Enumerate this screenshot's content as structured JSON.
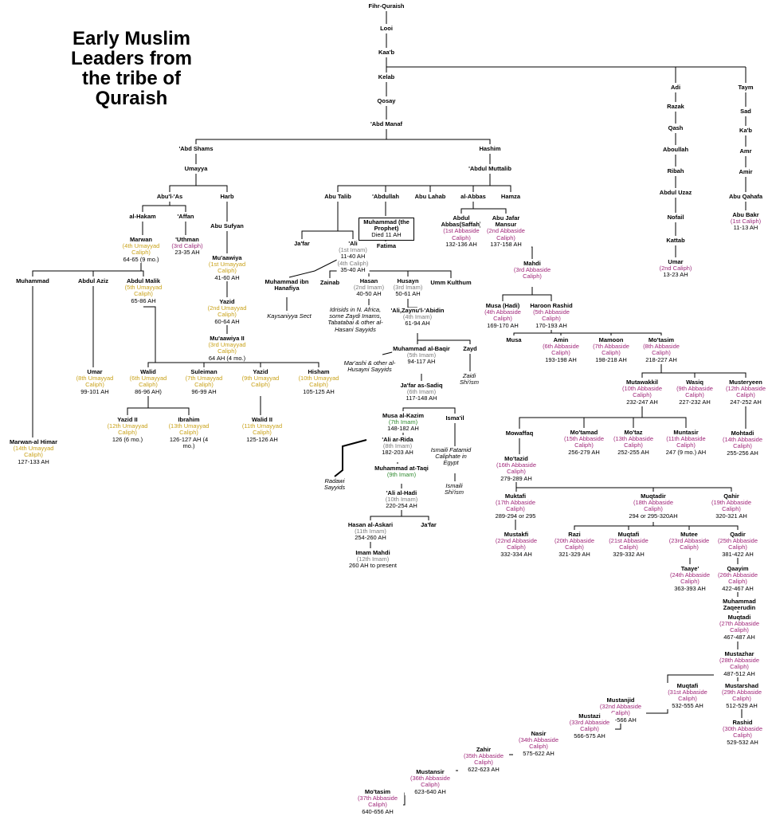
{
  "title": "Early Muslim Leaders from the tribe of Quraish",
  "role_colors": {
    "umayyad": "#c9a21a",
    "abbasid": "#a0287a",
    "imam": "#7a7a7a",
    "imam_green": "#2f8a2f",
    "rashidun": "#9c2c7c"
  },
  "people": [
    {
      "id": "fihr",
      "name": "Fihr-Quraish"
    },
    {
      "id": "looi",
      "name": "Looi"
    },
    {
      "id": "kaab",
      "name": "Kaa'b"
    },
    {
      "id": "kelab",
      "name": "Kelab"
    },
    {
      "id": "qosay",
      "name": "Qosay"
    },
    {
      "id": "abdmanaf",
      "name": "'Abd Manaf"
    },
    {
      "id": "abdshams",
      "name": "'Abd Shams"
    },
    {
      "id": "hashim",
      "name": "Hashim"
    },
    {
      "id": "umayya",
      "name": "Umayya"
    },
    {
      "id": "abdulmuttalib",
      "name": "'Abdul Muttalib"
    },
    {
      "id": "abulas",
      "name": "Abu'l-'As"
    },
    {
      "id": "harb",
      "name": "Harb"
    },
    {
      "id": "abutalib",
      "name": "Abu Talib"
    },
    {
      "id": "abdullah",
      "name": "'Abdullah"
    },
    {
      "id": "abulahab",
      "name": "Abu Lahab"
    },
    {
      "id": "alabbas",
      "name": "al-Abbas"
    },
    {
      "id": "hamza",
      "name": "Hamza"
    },
    {
      "id": "alhakam",
      "name": "al-Hakam"
    },
    {
      "id": "affan",
      "name": "'Affan"
    },
    {
      "id": "abusufyan",
      "name": "Abu Sufyan"
    },
    {
      "id": "muhammad_p",
      "name": "Muhammad (the Prophet)",
      "date": "Died 11 AH",
      "style": "box"
    },
    {
      "id": "abdulabbas",
      "name": "Abdul Abbas(Saffah)",
      "role": "(1st Abbaside Caliph)",
      "date": "132-136 AH",
      "group": "abbasid"
    },
    {
      "id": "abujafar",
      "name": "Abu Jafar Mansur",
      "role": "(2nd Abbaside Caliph)",
      "date": "137-158 AH",
      "group": "abbasid"
    },
    {
      "id": "marwan",
      "name": "Marwan",
      "role": "(4th Umayyad Caliph)",
      "date": "64-65 (9 mo.)",
      "group": "umayyad"
    },
    {
      "id": "uthman",
      "name": "'Uthman",
      "role": "(3rd Caliph)",
      "date": "23-35 AH",
      "group": "rashidun"
    },
    {
      "id": "jafar1",
      "name": "Ja'far"
    },
    {
      "id": "ali",
      "name": "'Ali",
      "role": "(1st Imam)",
      "date": "11-40 AH",
      "role2": "(4th Caliph)",
      "date2": "35-40 AH",
      "group": "imam"
    },
    {
      "id": "fatima",
      "name": "Fatima"
    },
    {
      "id": "muawiya",
      "name": "Mu'aawiya",
      "role": "(1st Umayyad Caliph)",
      "date": "41-60 AH",
      "group": "umayyad"
    },
    {
      "id": "mahdi",
      "name": "Mahdi",
      "role": "(3rd Abbaside Caliph)",
      "group": "abbasid"
    },
    {
      "id": "muhammad_s",
      "name": "Muhammad"
    },
    {
      "id": "abdulaziz",
      "name": "Abdul Aziz"
    },
    {
      "id": "abdulmalik",
      "name": "Abdul Malik",
      "role": "(5th Umayyad Caliph)",
      "date": "65-86 AH",
      "group": "umayyad"
    },
    {
      "id": "muhammad_ih",
      "name": "Muhammad ibn Hanafiya"
    },
    {
      "id": "zainab",
      "name": "Zainab"
    },
    {
      "id": "hasan",
      "name": "Hasan",
      "role": "(2nd Imam)",
      "date": "40-50 AH",
      "group": "imam"
    },
    {
      "id": "husayn",
      "name": "Husayn",
      "role": "(3rd Imam)",
      "date": "50-61 AH",
      "group": "imam"
    },
    {
      "id": "ummkulthum",
      "name": "Umm Kulthum"
    },
    {
      "id": "yazid",
      "name": "Yazid",
      "role": "(2nd Umayyad Caliph)",
      "date": "60-64 AH",
      "group": "umayyad"
    },
    {
      "id": "musahadi",
      "name": "Musa (Hadi)",
      "role": "(4th Abbaside Caliph)",
      "date": "169-170 AH",
      "group": "abbasid"
    },
    {
      "id": "haroon",
      "name": "Haroon Rashid",
      "role": "(5th Abbaside Caliph)",
      "date": "170-193 AH",
      "group": "abbasid"
    },
    {
      "id": "aliz",
      "name": "'Ali,Zaynu'l-'Abidin",
      "role": "(4th Imam)",
      "date": "61-94 AH",
      "group": "imam"
    },
    {
      "id": "muawiya2",
      "name": "Mu'aawiya II",
      "role": "(3rd Umayyad Caliph)",
      "date": "64 AH (4 mo.)",
      "group": "umayyad"
    },
    {
      "id": "musa",
      "name": "Musa"
    },
    {
      "id": "amin",
      "name": "Amin",
      "role": "(6th Abbaside Caliph)",
      "date": "193-198 AH",
      "group": "abbasid"
    },
    {
      "id": "mamoon",
      "name": "Mamoon",
      "role": "(7th Abbaside Caliph)",
      "date": "198-218 AH",
      "group": "abbasid"
    },
    {
      "id": "motasim",
      "name": "Mo'tasim",
      "role": "(8th Abbaside Caliph)",
      "date": "218-227 AH",
      "group": "abbasid"
    },
    {
      "id": "baqir",
      "name": "Muhammad al-Baqir",
      "role": "(5th Imam)",
      "date": "94-117 AH",
      "group": "imam"
    },
    {
      "id": "zayd",
      "name": "Zayd"
    },
    {
      "id": "umar2",
      "name": "Umar",
      "role": "(8th Umayyad Caliph)",
      "date": "99-101 AH",
      "group": "umayyad"
    },
    {
      "id": "walid",
      "name": "Walid",
      "role": "(6th Umayyad Caliph)",
      "date": "86-96 AH)",
      "group": "umayyad"
    },
    {
      "id": "suleiman",
      "name": "Suleiman",
      "role": "(7th Umayyad Caliph)",
      "date": "96-99 AH",
      "group": "umayyad"
    },
    {
      "id": "yazid2",
      "name": "Yazid",
      "role": "(9th Umayyad Caliph)",
      "group": "umayyad"
    },
    {
      "id": "hisham",
      "name": "Hisham",
      "role": "(10th Umayyad Caliph)",
      "date": "105-125 AH",
      "group": "umayyad"
    },
    {
      "id": "sadiq",
      "name": "Ja'far as-Sadiq",
      "role": "(6th Imam)",
      "date": "117-148 AH",
      "group": "imam"
    },
    {
      "id": "mutawakkil",
      "name": "Mutawakkil",
      "role": "(10th Abbaside Caliph)",
      "date": "232-247 AH",
      "group": "abbasid"
    },
    {
      "id": "wasiq",
      "name": "Wasiq",
      "role": "(9th Abbaside Caliph)",
      "date": "227-232 AH",
      "group": "abbasid"
    },
    {
      "id": "mustanyeen",
      "name": "Musteryeen",
      "role": "(12th Abbaside Caliph)",
      "date": "247-252 AH",
      "group": "abbasid"
    },
    {
      "id": "kazim",
      "name": "Musa al-Kazim",
      "role": "(7th Imam)",
      "date": "148-182 AH",
      "group": "imam_green"
    },
    {
      "id": "ismail",
      "name": "Isma'il"
    },
    {
      "id": "yazidii",
      "name": "Yazid II",
      "role": "(12th Umayyad Caliph)",
      "date": "126 (6 mo.)",
      "group": "umayyad"
    },
    {
      "id": "ibrahim",
      "name": "Ibrahim",
      "role": "(13th Umayyad Caliph)",
      "date": "126-127 AH (4 mo.)",
      "group": "umayyad"
    },
    {
      "id": "walidii",
      "name": "Walid II",
      "role": "(11th Umayyad Caliph)",
      "date": "125-126 AH",
      "group": "umayyad"
    },
    {
      "id": "mowaffaq",
      "name": "Mowaffaq"
    },
    {
      "id": "motamad",
      "name": "Mo'tamad",
      "role": "(15th Abbaside Caliph)",
      "date": "256-279 AH",
      "group": "abbasid"
    },
    {
      "id": "motaz",
      "name": "Mo'taz",
      "role": "(13th Abbaside Caliph)",
      "date": "252-255 AH",
      "group": "abbasid"
    },
    {
      "id": "muntasir",
      "name": "Muntasir",
      "role": "(11th Abbaside Caliph)",
      "date": "247 (9 mo.) AH",
      "group": "abbasid"
    },
    {
      "id": "mohtadi",
      "name": "Mohtadi",
      "role": "(14th Abbaside Caliph)",
      "date": "255-256 AH",
      "group": "abbasid"
    },
    {
      "id": "rida",
      "name": "'Ali ar-Rida",
      "role": "(8th Imam)",
      "date": "182-203 AH",
      "group": "imam"
    },
    {
      "id": "marwanh",
      "name": "Marwan-al Himar",
      "role": "(14th Umayyad Caliph)",
      "date": "127-133 AH",
      "group": "umayyad"
    },
    {
      "id": "motazid",
      "name": "Mo'tazid",
      "role": "(16th Abbaside Caliph)",
      "date": "279-289 AH",
      "group": "abbasid"
    },
    {
      "id": "taqi",
      "name": "Muhammad at-Taqi",
      "role": "(9th Imam)",
      "group": "imam_green"
    },
    {
      "id": "hadi",
      "name": "'Ali al-Hadi",
      "role": "(10th Imam)",
      "date": "220-254 AH",
      "group": "imam"
    },
    {
      "id": "muktafi",
      "name": "Muktafi",
      "role": "(17th Abbaside Caliph)",
      "date": "289-294 or 295",
      "group": "abbasid"
    },
    {
      "id": "muqtadir",
      "name": "Muqtadir",
      "role": "(18th Abbaside Caliph)",
      "date": "294 or 295-320AH",
      "group": "abbasid"
    },
    {
      "id": "qahir",
      "name": "Qahir",
      "role": "(19th Abbaside Caliph)",
      "date": "320-321 AH",
      "group": "abbasid"
    },
    {
      "id": "askari",
      "name": "Hasan al-Askari",
      "role": "(11th Imam)",
      "date": "254-260 AH",
      "group": "imam"
    },
    {
      "id": "jafar2",
      "name": "Ja'far"
    },
    {
      "id": "mustakfi",
      "name": "Mustakfi",
      "role": "(22nd Abbaside Caliph)",
      "date": "332-334 AH",
      "group": "abbasid"
    },
    {
      "id": "razi",
      "name": "Razi",
      "role": "(20th Abbaside Caliph)",
      "date": "321-329 AH",
      "group": "abbasid"
    },
    {
      "id": "muqtafi1",
      "name": "Muqtafi",
      "role": "(21st Abbaside Caliph)",
      "date": "329-332 AH",
      "group": "abbasid"
    },
    {
      "id": "mutee",
      "name": "Mutee",
      "role": "(23rd Abbaside Caliph)",
      "group": "abbasid"
    },
    {
      "id": "qadir",
      "name": "Qadir",
      "role": "(25th Abbaside Caliph)",
      "date": "381-422 AH",
      "group": "abbasid"
    },
    {
      "id": "imammahdi",
      "name": "Imam Mahdi",
      "role": "(12th Imam)",
      "date": "260 AH to present",
      "group": "imam"
    },
    {
      "id": "taaye",
      "name": "Taaye'",
      "role": "(24th Abbaside Caliph)",
      "date": "363-393 AH",
      "group": "abbasid"
    },
    {
      "id": "qaayim",
      "name": "Qaayim",
      "role": "(26th Abbaside Caliph)",
      "date": "422-467 AH",
      "group": "abbasid"
    },
    {
      "id": "zaqeer",
      "name": "Muhammad Zaqeerudin"
    },
    {
      "id": "muqtadi",
      "name": "Muqtadi",
      "role": "(27th Abbaside Caliph)",
      "date": "467-487 AH",
      "group": "abbasid"
    },
    {
      "id": "mustazhar",
      "name": "Mustazhar",
      "role": "(28th Abbaside Caliph)",
      "date": "487-512 AH",
      "group": "abbasid"
    },
    {
      "id": "muqtafi2",
      "name": "Muqtafi",
      "role": "(31st Abbaside Caliph)",
      "date": "532-555 AH",
      "group": "abbasid"
    },
    {
      "id": "mustarshad",
      "name": "Mustarshad",
      "role": "(29th Abbaside Caliph)",
      "date": "512-529 AH",
      "group": "abbasid"
    },
    {
      "id": "mustanjid",
      "name": "Mustanjid",
      "role": "(32nd Abbaside Caliph)",
      "date": "555-566 AH",
      "group": "abbasid"
    },
    {
      "id": "rashid",
      "name": "Rashid",
      "role": "(30th Abbaside Caliph)",
      "date": "529-532 AH",
      "group": "abbasid"
    },
    {
      "id": "mustazi",
      "name": "Mustazi",
      "role": "(33rd Abbaside Caliph)",
      "date": "566-575 AH",
      "group": "abbasid"
    },
    {
      "id": "nasir",
      "name": "Nasir",
      "role": "(34th Abbaside Caliph)",
      "date": "575-622 AH",
      "group": "abbasid"
    },
    {
      "id": "zahir",
      "name": "Zahir",
      "role": "(35th Abbaside Caliph)",
      "date": "622-623 AH",
      "group": "abbasid"
    },
    {
      "id": "mustansir",
      "name": "Mustansir",
      "role": "(36th Abbaside Caliph)",
      "date": "623-640 AH",
      "group": "abbasid"
    },
    {
      "id": "motasim2",
      "name": "Mo'tasim",
      "role": "(37th Abbaside Caliph)",
      "date": "640-656 AH",
      "group": "abbasid"
    },
    {
      "id": "adi",
      "name": "Adi"
    },
    {
      "id": "razak",
      "name": "Razak"
    },
    {
      "id": "qash",
      "name": "Qash"
    },
    {
      "id": "aboullah",
      "name": "Aboullah"
    },
    {
      "id": "ribah",
      "name": "Ribah"
    },
    {
      "id": "abduluzaz",
      "name": "Abdul Uzaz"
    },
    {
      "id": "nofail",
      "name": "Nofail"
    },
    {
      "id": "kattab",
      "name": "Kattab"
    },
    {
      "id": "umar1",
      "name": "Umar",
      "role": "(2nd Caliph)",
      "date": "13-23 AH",
      "group": "rashidun"
    },
    {
      "id": "taym",
      "name": "Taym"
    },
    {
      "id": "sad",
      "name": "Sad"
    },
    {
      "id": "kab2",
      "name": "Ka'b"
    },
    {
      "id": "amr",
      "name": "Amr"
    },
    {
      "id": "amir",
      "name": "Amir"
    },
    {
      "id": "abuqahafa",
      "name": "Abu Qahafa"
    },
    {
      "id": "abubakr",
      "name": "Abu Bakr",
      "role": "(1st Caliph)",
      "date": "11-13 AH",
      "group": "rashidun"
    }
  ],
  "notes": [
    {
      "id": "kaysaniyya",
      "text": "Kaysaniyya Sect"
    },
    {
      "id": "idrisids",
      "text": "Idrisids in N. Africa, some Zaydi Imams, Tabatabai & other al-Hasani Sayyids"
    },
    {
      "id": "marashi",
      "text": "Mar'ashi & other al-Husayni Sayyids"
    },
    {
      "id": "zaidishiism",
      "text": "Zaidi Shi'ism"
    },
    {
      "id": "fatamid",
      "text": "Ismaili Fatamid Caliphate in Egypt"
    },
    {
      "id": "ismailishiism",
      "text": "Ismaili Shi'ism"
    },
    {
      "id": "radawi",
      "text": "Radawi Sayyids"
    }
  ]
}
